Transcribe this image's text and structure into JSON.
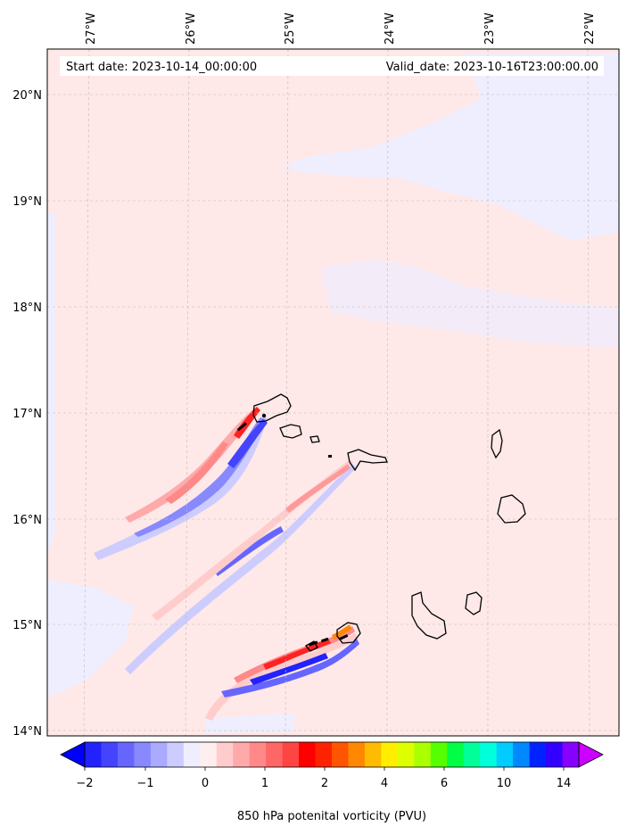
{
  "header": {
    "start_date": "Start date: 2023-10-14_00:00:00",
    "valid_date": "Valid_date: 2023-10-16T23:00:00.00"
  },
  "map": {
    "lon_labels": [
      "27°W",
      "26°W",
      "25°W",
      "24°W",
      "23°W",
      "22°W"
    ],
    "lat_labels": [
      "20°N",
      "19°N",
      "18°N",
      "17°N",
      "16°N",
      "15°N",
      "14°N"
    ],
    "background_color": "#ffe8e8",
    "land_outline_color": "#000000",
    "gridlines": true
  },
  "colorbar": {
    "label": "850 hPa potenital vorticity (PVU)",
    "tick_labels": [
      "−2",
      "−1",
      "0",
      "1",
      "2",
      "4",
      "6",
      "10",
      "14"
    ],
    "colors": [
      "#0000ff",
      "#2222ff",
      "#4444ff",
      "#6666ff",
      "#8888ff",
      "#aaaaff",
      "#ccccff",
      "#eeeeff",
      "#ffeeee",
      "#ffcccc",
      "#ffaaaa",
      "#ff8888",
      "#ff6666",
      "#ff4444",
      "#ff0000",
      "#ff2200",
      "#ff5500",
      "#ff8800",
      "#ffbb00",
      "#ffee00",
      "#ddff00",
      "#aaff00",
      "#55ff00",
      "#00ff44",
      "#00ff99",
      "#00ffdd",
      "#00ccff",
      "#0088ff",
      "#0022ff",
      "#3300ff",
      "#8800ff",
      "#cc00ff"
    ]
  }
}
